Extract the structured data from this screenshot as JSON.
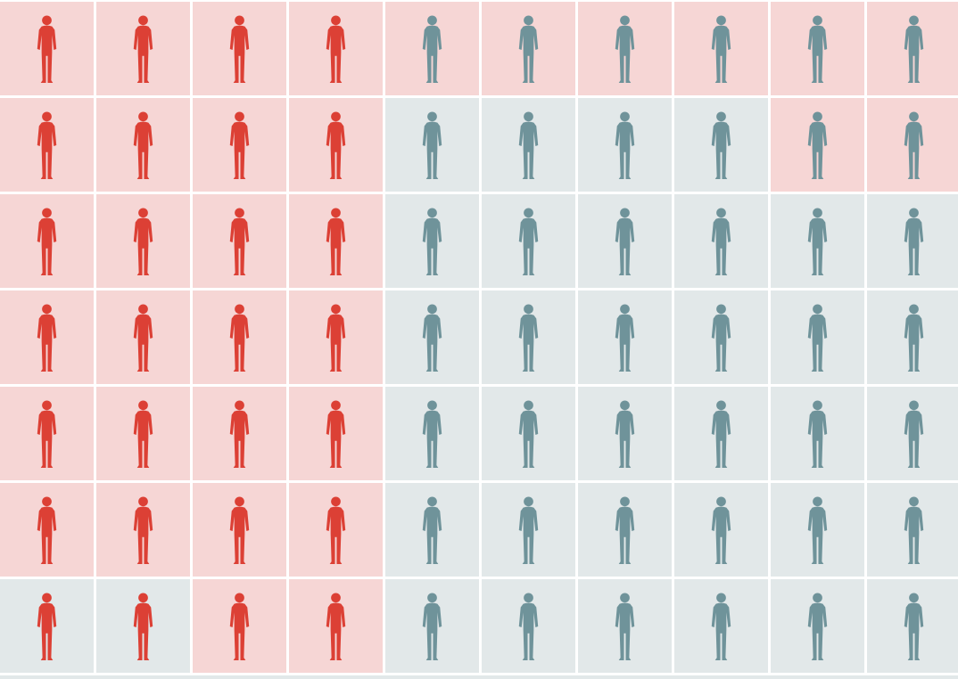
{
  "grid": {
    "rows": [
      [
        {
          "figure": "#dc4035",
          "background": "#f6d6d5"
        },
        {
          "figure": "#dc4035",
          "background": "#f6d6d5"
        },
        {
          "figure": "#dc4035",
          "background": "#f6d6d5"
        },
        {
          "figure": "#dc4035",
          "background": "#f6d6d5"
        },
        {
          "figure": "#6f939a",
          "background": "#f6d6d5"
        },
        {
          "figure": "#6f939a",
          "background": "#f6d6d5"
        },
        {
          "figure": "#6f939a",
          "background": "#f6d6d5"
        },
        {
          "figure": "#6f939a",
          "background": "#f6d6d5"
        },
        {
          "figure": "#6f939a",
          "background": "#f6d6d5"
        },
        {
          "figure": "#6f939a",
          "background": "#f6d6d5"
        }
      ],
      [
        {
          "figure": "#dc4035",
          "background": "#f6d6d5"
        },
        {
          "figure": "#dc4035",
          "background": "#f6d6d5"
        },
        {
          "figure": "#dc4035",
          "background": "#f6d6d5"
        },
        {
          "figure": "#dc4035",
          "background": "#f6d6d5"
        },
        {
          "figure": "#6f939a",
          "background": "#e2e8e9"
        },
        {
          "figure": "#6f939a",
          "background": "#e2e8e9"
        },
        {
          "figure": "#6f939a",
          "background": "#e2e8e9"
        },
        {
          "figure": "#6f939a",
          "background": "#e2e8e9"
        },
        {
          "figure": "#6f939a",
          "background": "#f6d6d5"
        },
        {
          "figure": "#6f939a",
          "background": "#f6d6d5"
        }
      ],
      [
        {
          "figure": "#dc4035",
          "background": "#f6d6d5"
        },
        {
          "figure": "#dc4035",
          "background": "#f6d6d5"
        },
        {
          "figure": "#dc4035",
          "background": "#f6d6d5"
        },
        {
          "figure": "#dc4035",
          "background": "#f6d6d5"
        },
        {
          "figure": "#6f939a",
          "background": "#e2e8e9"
        },
        {
          "figure": "#6f939a",
          "background": "#e2e8e9"
        },
        {
          "figure": "#6f939a",
          "background": "#e2e8e9"
        },
        {
          "figure": "#6f939a",
          "background": "#e2e8e9"
        },
        {
          "figure": "#6f939a",
          "background": "#e2e8e9"
        },
        {
          "figure": "#6f939a",
          "background": "#e2e8e9"
        }
      ],
      [
        {
          "figure": "#dc4035",
          "background": "#f6d6d5"
        },
        {
          "figure": "#dc4035",
          "background": "#f6d6d5"
        },
        {
          "figure": "#dc4035",
          "background": "#f6d6d5"
        },
        {
          "figure": "#dc4035",
          "background": "#f6d6d5"
        },
        {
          "figure": "#6f939a",
          "background": "#e2e8e9"
        },
        {
          "figure": "#6f939a",
          "background": "#e2e8e9"
        },
        {
          "figure": "#6f939a",
          "background": "#e2e8e9"
        },
        {
          "figure": "#6f939a",
          "background": "#e2e8e9"
        },
        {
          "figure": "#6f939a",
          "background": "#e2e8e9"
        },
        {
          "figure": "#6f939a",
          "background": "#e2e8e9"
        }
      ],
      [
        {
          "figure": "#dc4035",
          "background": "#f6d6d5"
        },
        {
          "figure": "#dc4035",
          "background": "#f6d6d5"
        },
        {
          "figure": "#dc4035",
          "background": "#f6d6d5"
        },
        {
          "figure": "#dc4035",
          "background": "#f6d6d5"
        },
        {
          "figure": "#6f939a",
          "background": "#e2e8e9"
        },
        {
          "figure": "#6f939a",
          "background": "#e2e8e9"
        },
        {
          "figure": "#6f939a",
          "background": "#e2e8e9"
        },
        {
          "figure": "#6f939a",
          "background": "#e2e8e9"
        },
        {
          "figure": "#6f939a",
          "background": "#e2e8e9"
        },
        {
          "figure": "#6f939a",
          "background": "#e2e8e9"
        }
      ],
      [
        {
          "figure": "#dc4035",
          "background": "#f6d6d5"
        },
        {
          "figure": "#dc4035",
          "background": "#f6d6d5"
        },
        {
          "figure": "#dc4035",
          "background": "#f6d6d5"
        },
        {
          "figure": "#dc4035",
          "background": "#f6d6d5"
        },
        {
          "figure": "#6f939a",
          "background": "#e2e8e9"
        },
        {
          "figure": "#6f939a",
          "background": "#e2e8e9"
        },
        {
          "figure": "#6f939a",
          "background": "#e2e8e9"
        },
        {
          "figure": "#6f939a",
          "background": "#e2e8e9"
        },
        {
          "figure": "#6f939a",
          "background": "#e2e8e9"
        },
        {
          "figure": "#6f939a",
          "background": "#e2e8e9"
        }
      ],
      [
        {
          "figure": "#dc4035",
          "background": "#e2e8e9"
        },
        {
          "figure": "#dc4035",
          "background": "#e2e8e9"
        },
        {
          "figure": "#dc4035",
          "background": "#f6d6d5"
        },
        {
          "figure": "#dc4035",
          "background": "#f6d6d5"
        },
        {
          "figure": "#6f939a",
          "background": "#e2e8e9"
        },
        {
          "figure": "#6f939a",
          "background": "#e2e8e9"
        },
        {
          "figure": "#6f939a",
          "background": "#e2e8e9"
        },
        {
          "figure": "#6f939a",
          "background": "#e2e8e9"
        },
        {
          "figure": "#6f939a",
          "background": "#e2e8e9"
        },
        {
          "figure": "#6f939a",
          "background": "#e2e8e9"
        }
      ]
    ]
  }
}
